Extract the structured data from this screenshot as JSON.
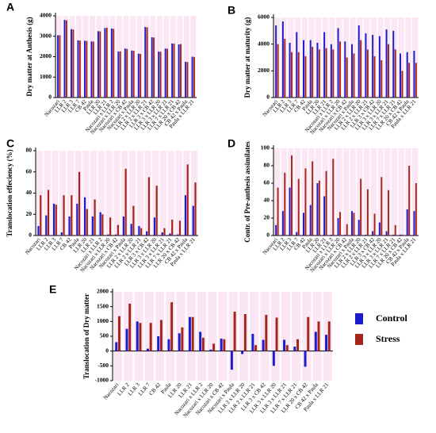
{
  "chart_data": [
    {
      "type": "bar",
      "title": "A",
      "ylabel": "Dry matter at Anthesis (g)",
      "categories": [
        "Nacozari",
        "LLR 2",
        "LLR 3",
        "LLR 7",
        "CB 42",
        "Paula",
        "LLR 20",
        "LLR 21",
        "Nacozari x LLR 2",
        "Nacozari x LLR 20",
        "Nacozari x CB 42",
        "Nacozari x Paula",
        "LLR 2 x LLR 20",
        "LLR 2 x LLR 21",
        "LLR 3 x CB 42",
        "LLR 3 x LLR 20",
        "LLR 3 x LLR 21",
        "LLR 7 x LLR 21",
        "LLR 20 x CB 42",
        "CB 42 x Paula",
        "Paula x LLR 21"
      ],
      "series": [
        {
          "color": "#1c1ccf",
          "values": [
            3050,
            3800,
            3350,
            2800,
            2780,
            2750,
            3250,
            3400,
            3380,
            2250,
            2400,
            2300,
            2150,
            3450,
            2950,
            2250,
            2400,
            2650,
            2600,
            1750,
            2000
          ]
        },
        {
          "color": "#a3261a",
          "values": [
            3050,
            3780,
            3330,
            2790,
            2770,
            2740,
            3240,
            3420,
            3360,
            2260,
            2380,
            2290,
            2140,
            3440,
            2940,
            2240,
            2390,
            2640,
            2620,
            1740,
            1990
          ]
        }
      ],
      "ylim": [
        0,
        4000
      ],
      "yticks": [
        0,
        1000,
        2000,
        3000,
        4000
      ]
    },
    {
      "type": "bar",
      "title": "B",
      "ylabel": "Dry matter at maturity (g)",
      "categories": [
        "Nacozari",
        "LLR 2",
        "LLR 3",
        "LLR 7",
        "CB 42",
        "Paula",
        "LLR 20",
        "LLR 21",
        "Nacozari x LLR 2",
        "Nacozari x LLR 20",
        "Nacozari x CB 42",
        "Nacozari x Paula",
        "LLR 2 x LLR 20",
        "LLR 2 x LLR 21",
        "LLR 3 x CB 42",
        "LLR 3 x LLR 20",
        "LLR 3 x LLR 21",
        "LLR 7 x LLR 21",
        "LLR 20 x CB 42",
        "CB 42 x Paula",
        "Paula x LLR 21"
      ],
      "series": [
        {
          "color": "#1c1ccf",
          "values": [
            5400,
            5700,
            4100,
            4900,
            4300,
            4300,
            4100,
            4900,
            4000,
            5200,
            4200,
            4000,
            5400,
            4800,
            4700,
            4600,
            5100,
            5000,
            3300,
            3400,
            3500
          ]
        },
        {
          "color": "#a3261a",
          "values": [
            4000,
            4400,
            3400,
            3400,
            3100,
            3800,
            3600,
            3700,
            3600,
            4200,
            3000,
            3300,
            4300,
            3600,
            3100,
            2800,
            4000,
            3600,
            2000,
            2600,
            2600
          ]
        }
      ],
      "ylim": [
        0,
        6000
      ],
      "yticks": [
        0,
        2000,
        4000,
        6000
      ]
    },
    {
      "type": "bar",
      "title": "C",
      "ylabel": "Translocation effeciency (%)",
      "categories": [
        "Nacozari",
        "LLR 2",
        "LLR 3",
        "LLR 7",
        "CB 42",
        "Paula",
        "LLR 20",
        "LLR 21",
        "Nacozari x LLR 2",
        "Nacozari x LLR 20",
        "Nacozari x CB 42",
        "Nacozari x Paula",
        "LLR 2 x LLR 20",
        "LLR 2 x LLR 21",
        "LLR 3 x CB 42",
        "LLR 3 x LLR 20",
        "LLR 3 x LLR 21",
        "LLR 7 x LLR 21",
        "LLR 20 x CB 42",
        "CB 42 x Paula",
        "Paula x LLR 21"
      ],
      "series": [
        {
          "color": "#1c1ccf",
          "values": [
            9,
            19,
            30,
            3,
            18,
            30,
            36,
            18,
            22,
            1,
            1,
            18,
            11,
            9,
            4,
            17,
            3,
            2,
            1,
            38,
            28
          ]
        },
        {
          "color": "#a3261a",
          "values": [
            38,
            43,
            29,
            38,
            38,
            60,
            25,
            34,
            20,
            17,
            10,
            63,
            28,
            7,
            55,
            47,
            7,
            15,
            14,
            67,
            50
          ]
        }
      ],
      "ylim": [
        0,
        80
      ],
      "yticks": [
        0,
        20,
        40,
        60,
        80
      ]
    },
    {
      "type": "bar",
      "title": "D",
      "ylabel": "Contr. of Pre-anthesis assimilates",
      "categories": [
        "Nacozari",
        "LLR 2",
        "LLR 3",
        "LLR 7",
        "CB 42",
        "Paula",
        "LLR 20",
        "LLR 21",
        "Nacozari x LLR 2",
        "Nacozari x LLR 20",
        "Nacozari x CB 42",
        "Nacozari x Paula",
        "LLR 2 x LLR 20",
        "LLR 2 x LLR 21",
        "LLR 3 x CB 42",
        "LLR 3 x LLR 20",
        "LLR 3 x LLR 21",
        "LLR 7 x LLR 21",
        "LLR 20 x CB 42",
        "CB 42 x Paula",
        "Paula x LLR 21"
      ],
      "series": [
        {
          "color": "#1c1ccf",
          "values": [
            12,
            28,
            55,
            4,
            26,
            35,
            60,
            45,
            1,
            20,
            1,
            28,
            18,
            1,
            5,
            15,
            5,
            1,
            1,
            30,
            28
          ]
        },
        {
          "color": "#a3261a",
          "values": [
            55,
            72,
            92,
            65,
            77,
            85,
            63,
            74,
            88,
            27,
            13,
            26,
            65,
            53,
            25,
            67,
            52,
            12,
            1,
            80,
            60
          ]
        }
      ],
      "ylim": [
        0,
        100
      ],
      "yticks": [
        0,
        20,
        40,
        60,
        80,
        100
      ]
    },
    {
      "type": "bar",
      "title": "E",
      "ylabel": "Translocation of Dry matter",
      "legend": "right",
      "categories": [
        "Nacozari",
        "LLR 2",
        "LLR 3",
        "LLR 7",
        "CB 42",
        "Paula",
        "LLR 20",
        "LLR 21",
        "Nacozari x LLR 2",
        "Nacozari x LLR 20",
        "Nacozari x CB 42",
        "Nacozari x Paula",
        "LLR 2 x LLR 20",
        "LLR 2 x LLR 21",
        "LLR 3 x CB 42",
        "LLR 3 x LLR 20",
        "LLR 3 x LLR 21",
        "LLR 7 x LLR 21",
        "LLR 20 x CB 42",
        "CB 42 x Paula",
        "Paula x LLR 21"
      ],
      "series": [
        {
          "name": "Control",
          "color": "#1c1ccf",
          "values": [
            300,
            750,
            1000,
            80,
            500,
            400,
            600,
            1150,
            650,
            50,
            420,
            -630,
            -100,
            580,
            380,
            -500,
            380,
            150,
            -530,
            650,
            550
          ]
        },
        {
          "name": "Stress",
          "color": "#a3261a",
          "values": [
            1180,
            1600,
            950,
            950,
            1050,
            1650,
            800,
            1150,
            450,
            250,
            400,
            1330,
            1250,
            200,
            1220,
            1130,
            200,
            400,
            1150,
            1000,
            1000
          ]
        }
      ],
      "ylim": [
        -1000,
        2000
      ],
      "yticks": [
        -1000,
        -500,
        0,
        500,
        1000,
        1500,
        2000
      ]
    }
  ]
}
